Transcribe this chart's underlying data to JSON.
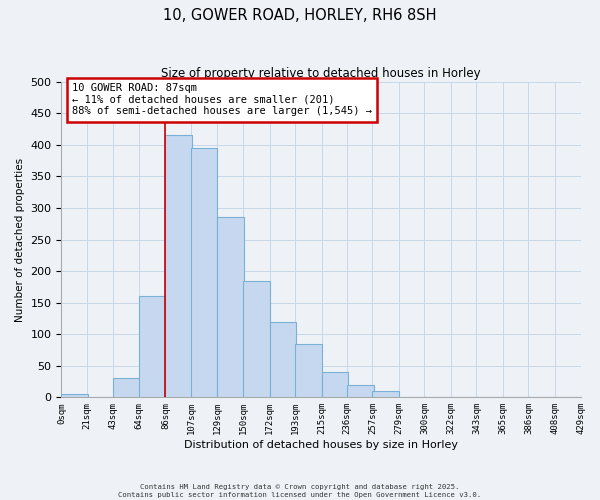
{
  "title": "10, GOWER ROAD, HORLEY, RH6 8SH",
  "subtitle": "Size of property relative to detached houses in Horley",
  "xlabel": "Distribution of detached houses by size in Horley",
  "ylabel": "Number of detached properties",
  "bin_labels": [
    "0sqm",
    "21sqm",
    "43sqm",
    "64sqm",
    "86sqm",
    "107sqm",
    "129sqm",
    "150sqm",
    "172sqm",
    "193sqm",
    "215sqm",
    "236sqm",
    "257sqm",
    "279sqm",
    "300sqm",
    "322sqm",
    "343sqm",
    "365sqm",
    "386sqm",
    "408sqm",
    "429sqm"
  ],
  "bar_values": [
    5,
    0,
    30,
    160,
    415,
    395,
    285,
    185,
    120,
    85,
    40,
    20,
    10,
    0,
    0,
    0,
    0,
    0,
    0,
    0
  ],
  "bar_color": "#c5d8f0",
  "bar_edge_color": "#7ab0d4",
  "property_line_x": 86,
  "annotation_line1": "10 GOWER ROAD: 87sqm",
  "annotation_line2": "← 11% of detached houses are smaller (201)",
  "annotation_line3": "88% of semi-detached houses are larger (1,545) →",
  "annotation_box_color": "#ffffff",
  "annotation_box_edge_color": "#cc0000",
  "ylim": [
    0,
    500
  ],
  "yticks": [
    0,
    50,
    100,
    150,
    200,
    250,
    300,
    350,
    400,
    450,
    500
  ],
  "grid_color": "#c8d8e8",
  "background_color": "#eef2f7",
  "footnote_line1": "Contains HM Land Registry data © Crown copyright and database right 2025.",
  "footnote_line2": "Contains public sector information licensed under the Open Government Licence v3.0."
}
